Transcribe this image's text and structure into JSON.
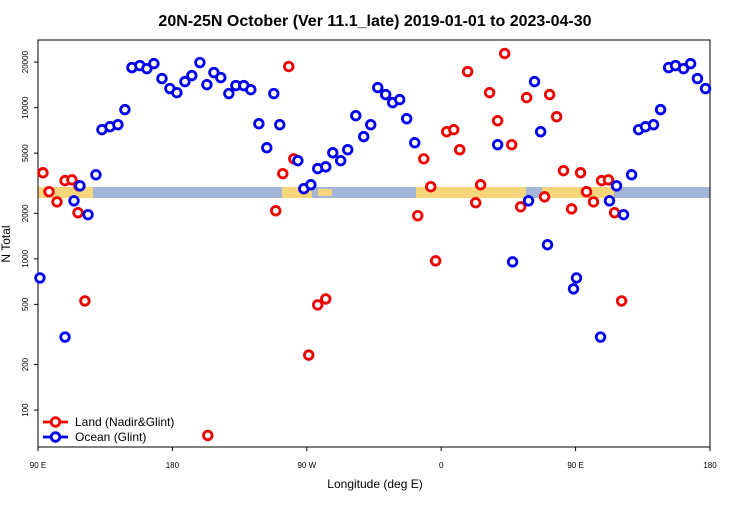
{
  "chart_data": {
    "type": "scatter",
    "title": "20N-25N October (Ver 11.1_late)   2019-01-01 to 2023-04-30",
    "x_label": "Longitude (deg E)",
    "y_label": "N Total",
    "log_y": true,
    "legend": "lower left",
    "xlim": [
      90,
      540
    ],
    "ylim": [
      57,
      28000
    ],
    "xticks": [
      {
        "value": 90,
        "label": "90 E"
      },
      180,
      {
        "value": 270,
        "label": "90 W"
      },
      {
        "value": 360,
        "label": "0"
      },
      {
        "value": 450,
        "label": "90 E"
      },
      {
        "value": 540,
        "label": "180"
      }
    ],
    "yticks": [
      100,
      200,
      500,
      1000,
      2000,
      5000,
      10000,
      20000
    ],
    "series": [
      {
        "name": "Land (Nadir&Glint)",
        "color": "#ee0000",
        "x": [
          93.3,
          97.4,
          102.7,
          108.1,
          112.7,
          116.8,
          121.4,
          117.4,
          203.7,
          249.2,
          253.9,
          257.9,
          261.3,
          271.3,
          277.3,
          282.7,
          344.3,
          348.3,
          353,
          356.3,
          363.7,
          368.4,
          372.4,
          377.7,
          383.1,
          386.4,
          392.4,
          397.8,
          402.5,
          407.2,
          413.2,
          417.2,
          429.2,
          432.6,
          437.3,
          441.9,
          447.3,
          453.3,
          457.3,
          462,
          467.4,
          472,
          476.1,
          480.8
        ],
        "values": [
          3710,
          2780,
          2380,
          3290,
          3330,
          2020,
          527,
          3040,
          68,
          2080,
          3660,
          18700,
          4590,
          231,
          496,
          543,
          1930,
          4590,
          3000,
          970,
          6930,
          7150,
          5270,
          17300,
          2350,
          3090,
          12560,
          8200,
          22800,
          5690,
          2210,
          11650,
          2570,
          12200,
          8710,
          3830,
          2140,
          3710,
          2780,
          2380,
          3290,
          3330,
          2020,
          527
        ]
      },
      {
        "name": "Ocean (Glint)",
        "color": "#0000ee",
        "x": [
          91.3,
          108.1,
          114.1,
          118.1,
          123.5,
          128.8,
          132.8,
          138.2,
          143.5,
          148.2,
          152.9,
          158.2,
          162.9,
          167.6,
          173,
          178.3,
          183,
          188.4,
          193,
          198.4,
          203.1,
          207.8,
          212.4,
          217.8,
          222.5,
          227.8,
          232.5,
          237.9,
          243.2,
          247.9,
          251.9,
          264,
          268,
          272.7,
          277.3,
          282.7,
          287.4,
          292.7,
          297.4,
          302.8,
          308.1,
          312.8,
          317.5,
          322.8,
          327.5,
          332.2,
          336.9,
          342.3,
          397.8,
          407.8,
          418.5,
          422.5,
          426.6,
          431.2,
          448.6,
          450.6,
          466.7,
          472.7,
          477.4,
          482.1,
          487.5,
          492.2,
          496.8,
          502.2,
          506.9,
          512.3,
          516.9,
          522.3,
          527,
          531.6,
          537
        ],
        "values": [
          748,
          304,
          2420,
          3040,
          1960,
          3600,
          7150,
          7480,
          7710,
          9700,
          18400,
          18970,
          18100,
          19550,
          15560,
          13370,
          12560,
          14860,
          16300,
          19860,
          14190,
          17060,
          15800,
          12390,
          13990,
          13990,
          13150,
          7830,
          5430,
          12390,
          7710,
          4460,
          2910,
          3090,
          3950,
          4060,
          5030,
          4460,
          5270,
          8850,
          6430,
          7710,
          13560,
          12200,
          10790,
          11300,
          8450,
          5860,
          5690,
          955,
          2420,
          14860,
          6930,
          1240,
          633,
          748,
          304,
          2420,
          3040,
          1960,
          3600,
          7150,
          7480,
          7710,
          9700,
          18400,
          18970,
          18100,
          19550,
          15560,
          13370
        ]
      }
    ]
  }
}
